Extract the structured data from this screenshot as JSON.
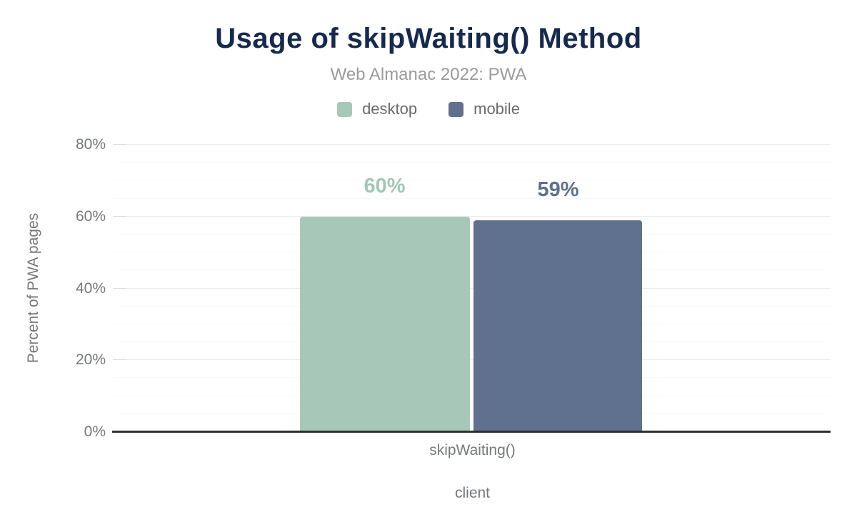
{
  "header": {
    "title": "Usage of skipWaiting() Method",
    "subtitle": "Web Almanac 2022: PWA"
  },
  "legend": {
    "items": [
      {
        "label": "desktop",
        "color": "#a7c8b9"
      },
      {
        "label": "mobile",
        "color": "#5f718e"
      }
    ]
  },
  "chart_data": {
    "type": "bar",
    "title": "Usage of skipWaiting() Method",
    "subtitle": "Web Almanac 2022: PWA",
    "categories": [
      "skipWaiting()"
    ],
    "series": [
      {
        "name": "desktop",
        "values": [
          60
        ],
        "color": "#a7c8b9",
        "label_color": "#a3c6b6"
      },
      {
        "name": "mobile",
        "values": [
          59
        ],
        "color": "#5f718e",
        "label_color": "#5d6f8e"
      }
    ],
    "data_labels": [
      "60%",
      "59%"
    ],
    "xlabel": "client",
    "ylabel": "Percent of PWA pages",
    "ylim": [
      0,
      80
    ],
    "ytick_major_step": 20,
    "ytick_minor_step": 5,
    "ytick_suffix": "%",
    "grid": true,
    "legend_position": "top"
  },
  "colors": {
    "title": "#16294f",
    "subtitle": "#9b9b9b",
    "legend_text": "#6b6b6b",
    "axis_text": "#75787b",
    "gridline_major": "#ececec",
    "gridline_minor": "#f8f8f8",
    "tick_mark": "#dedede",
    "baseline": "#2f2f2f",
    "background": "#ffffff"
  }
}
